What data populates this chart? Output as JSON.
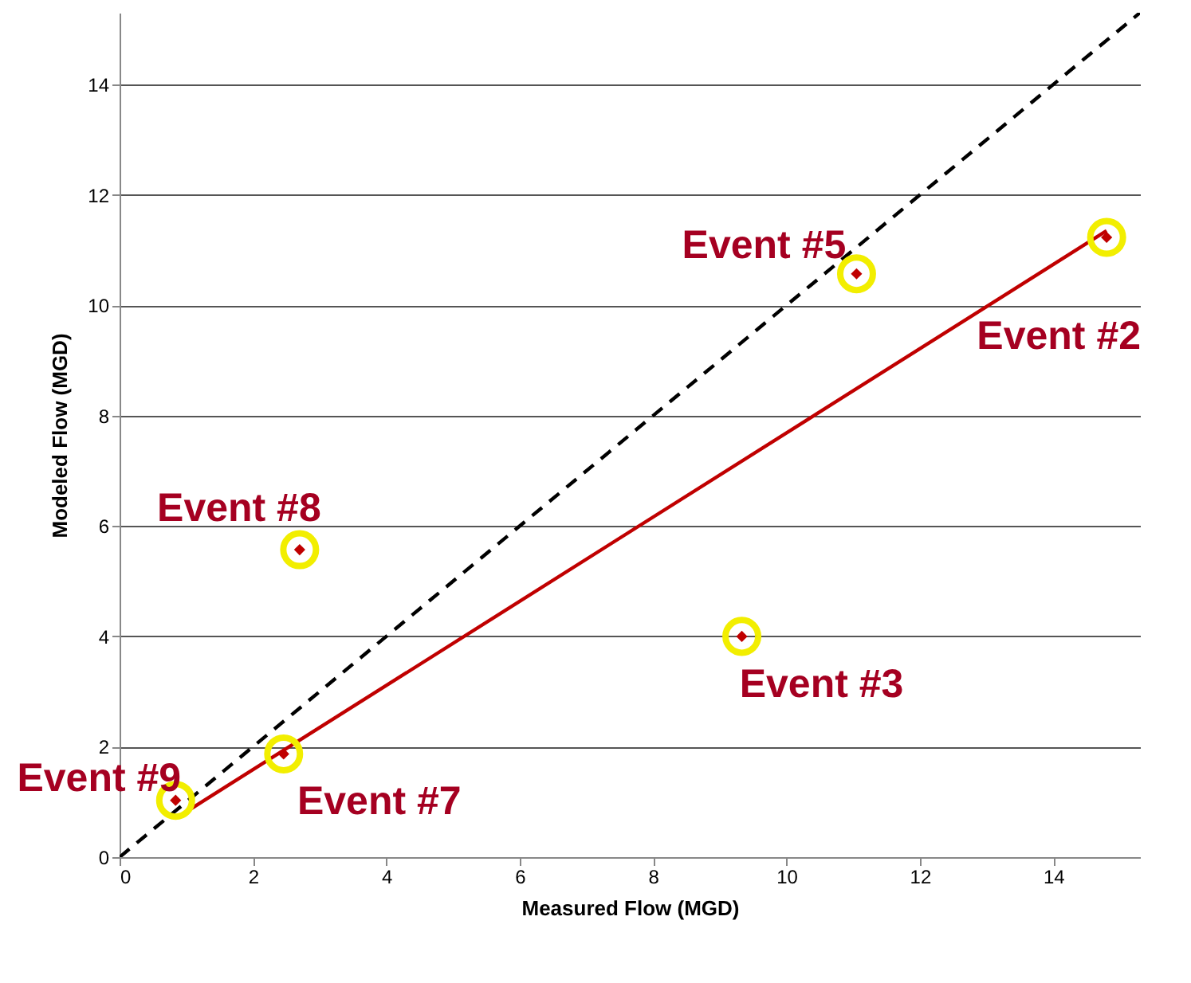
{
  "chart_data": {
    "type": "scatter",
    "xlabel": "Measured Flow (MGD)",
    "ylabel": "Modeled Flow (MGD)",
    "xlim": [
      0,
      15.3
    ],
    "ylim": [
      0,
      15.3
    ],
    "xticks": [
      0,
      2,
      4,
      6,
      8,
      10,
      12,
      14
    ],
    "yticks": [
      0,
      2,
      4,
      6,
      8,
      10,
      12,
      14
    ],
    "grid": "y",
    "series": [
      {
        "type": "line",
        "color": "#000000",
        "line_style": "dashed",
        "x": [
          0,
          15.3
        ],
        "values": [
          0,
          15.3
        ]
      },
      {
        "type": "line",
        "color": "#c00000",
        "line_style": "solid",
        "x": [
          1.05,
          14.8
        ],
        "values": [
          0.86,
          11.35
        ]
      },
      {
        "type": "scatter",
        "color": "#c00000",
        "marker": "diamond",
        "x": [
          0.84,
          2.46,
          2.7,
          9.33,
          11.05,
          14.8
        ],
        "values": [
          1.03,
          1.87,
          5.57,
          4.0,
          10.57,
          11.23
        ]
      }
    ],
    "annotations": [
      {
        "text": "Event #9",
        "x": 0.84,
        "y": 1.03
      },
      {
        "text": "Event #7",
        "x": 2.46,
        "y": 1.87
      },
      {
        "text": "Event #8",
        "x": 2.7,
        "y": 5.57
      },
      {
        "text": "Event #3",
        "x": 9.33,
        "y": 4.0
      },
      {
        "text": "Event #5",
        "x": 11.05,
        "y": 10.57
      },
      {
        "text": "Event #2",
        "x": 14.8,
        "y": 11.23
      }
    ]
  }
}
